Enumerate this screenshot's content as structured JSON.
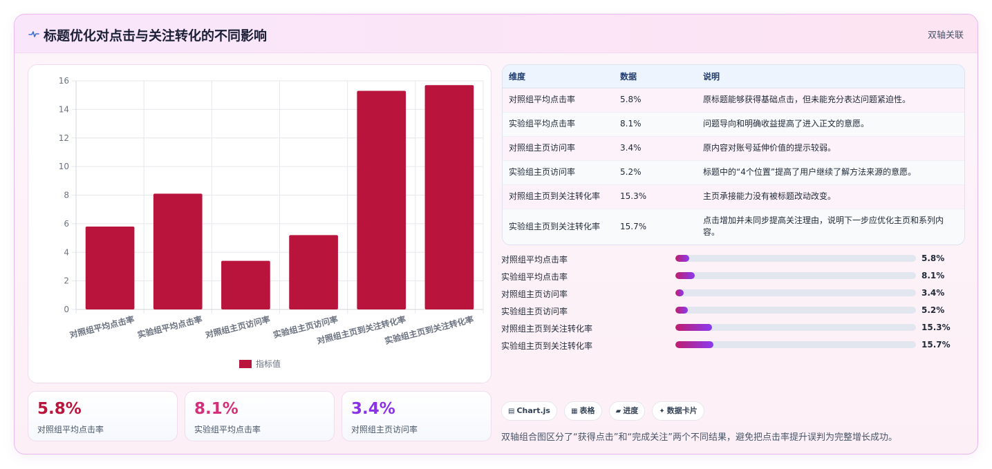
{
  "header": {
    "icon": "pulse-icon",
    "title": "标题优化对点击与关注转化的不同影响",
    "tag": "双轴关联"
  },
  "colors": {
    "bar": "#b9153c",
    "kpi1": "#b9153c",
    "kpi2": "#d62f7a",
    "kpi3": "#8a30e6",
    "progress_start": "#be1e6e",
    "progress_end": "#8b3bf0"
  },
  "chart_data": {
    "type": "bar",
    "categories": [
      "对照组平均点击率",
      "实验组平均点击率",
      "对照组主页访问率",
      "实验组主页访问率",
      "对照组主页到关注转化率",
      "实验组主页到关注转化率"
    ],
    "series": [
      {
        "name": "指标值",
        "values": [
          5.8,
          8.1,
          3.4,
          5.2,
          15.3,
          15.7
        ]
      }
    ],
    "ylim": [
      0,
      16
    ],
    "yticks": [
      0,
      2,
      4,
      6,
      8,
      10,
      12,
      14,
      16
    ],
    "xlabel": "",
    "ylabel": "",
    "grid": true,
    "legend_position": "bottom"
  },
  "kpis": [
    {
      "value": "5.8%",
      "label": "对照组平均点击率"
    },
    {
      "value": "8.1%",
      "label": "实验组平均点击率"
    },
    {
      "value": "3.4%",
      "label": "对照组主页访问率"
    }
  ],
  "table": {
    "headers": [
      "维度",
      "数据",
      "说明"
    ],
    "rows": [
      [
        "对照组平均点击率",
        "5.8%",
        "原标题能够获得基础点击，但未能充分表达问题紧迫性。"
      ],
      [
        "实验组平均点击率",
        "8.1%",
        "问题导向和明确收益提高了进入正文的意愿。"
      ],
      [
        "对照组主页访问率",
        "3.4%",
        "原内容对账号延伸价值的提示较弱。"
      ],
      [
        "实验组主页访问率",
        "5.2%",
        "标题中的“4个位置”提高了用户继续了解方法来源的意愿。"
      ],
      [
        "对照组主页到关注转化率",
        "15.3%",
        "主页承接能力没有被标题改动改变。"
      ],
      [
        "实验组主页到关注转化率",
        "15.7%",
        "点击增加并未同步提高关注理由，说明下一步应优化主页和系列内容。"
      ]
    ]
  },
  "progress": [
    {
      "label": "对照组平均点击率",
      "value_text": "5.8%",
      "fraction": 0.058
    },
    {
      "label": "实验组平均点击率",
      "value_text": "8.1%",
      "fraction": 0.081
    },
    {
      "label": "对照组主页访问率",
      "value_text": "3.4%",
      "fraction": 0.034
    },
    {
      "label": "实验组主页访问率",
      "value_text": "5.2%",
      "fraction": 0.052
    },
    {
      "label": "对照组主页到关注转化率",
      "value_text": "15.3%",
      "fraction": 0.153
    },
    {
      "label": "实验组主页到关注转化率",
      "value_text": "15.7%",
      "fraction": 0.157
    }
  ],
  "chips": [
    {
      "icon": "chart-icon",
      "glyph": "▤",
      "label": "Chart.js"
    },
    {
      "icon": "table-icon",
      "glyph": "▦",
      "label": "表格"
    },
    {
      "icon": "folder-icon",
      "glyph": "▰",
      "label": "进度"
    },
    {
      "icon": "sparkle-icon",
      "glyph": "✦",
      "label": "数据卡片"
    }
  ],
  "note": "双轴组合图区分了“获得点击”和“完成关注”两个不同结果，避免把点击率提升误判为完整增长成功。"
}
